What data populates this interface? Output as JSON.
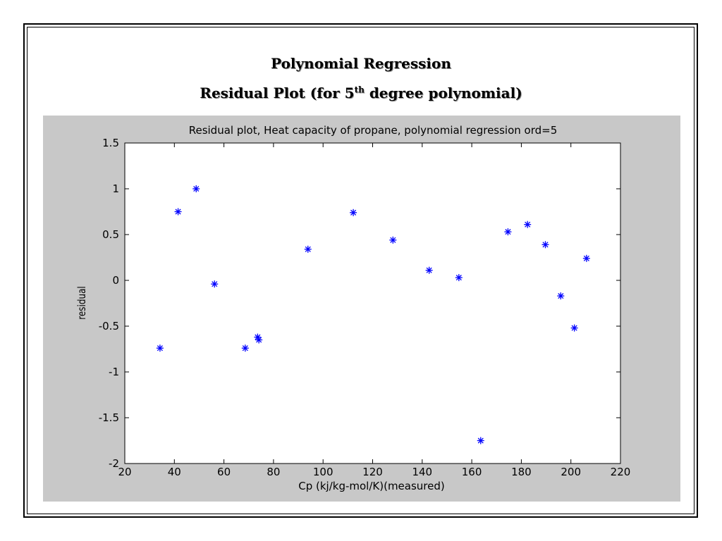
{
  "slide": {
    "title": "Polynomial Regression",
    "subtitle_prefix": "Residual Plot (for 5",
    "subtitle_sup": "th",
    "subtitle_suffix": " degree polynomial)"
  },
  "chart_data": {
    "type": "scatter",
    "title": "Residual plot, Heat capacity of propane, polynomial regression ord=5",
    "xlabel": "Cp (kj/kg-mol/K)(measured)",
    "ylabel": "residual",
    "xlim": [
      20,
      220
    ],
    "ylim": [
      -2,
      1.5
    ],
    "xticks": [
      "20",
      "40",
      "60",
      "80",
      "100",
      "120",
      "140",
      "160",
      "180",
      "200",
      "220"
    ],
    "yticks": [
      "-2",
      "-1.5",
      "-1",
      "-0.5",
      "0",
      "0.5",
      "1",
      "1.5"
    ],
    "grid": false,
    "marker": "*",
    "marker_color": "#0000ff",
    "series": [
      {
        "x": [
          34.2,
          41.5,
          48.8,
          56.2,
          68.6,
          73.6,
          74.1,
          93.9,
          112.2,
          128.2,
          142.8,
          154.8,
          163.6,
          174.6,
          182.5,
          189.7,
          195.9,
          201.4,
          206.3
        ],
        "y": [
          -0.74,
          0.75,
          1.0,
          -0.04,
          -0.74,
          -0.62,
          -0.65,
          0.34,
          0.74,
          0.44,
          0.11,
          0.03,
          -1.75,
          0.53,
          0.61,
          0.39,
          -0.17,
          -0.52,
          0.24
        ]
      }
    ]
  }
}
